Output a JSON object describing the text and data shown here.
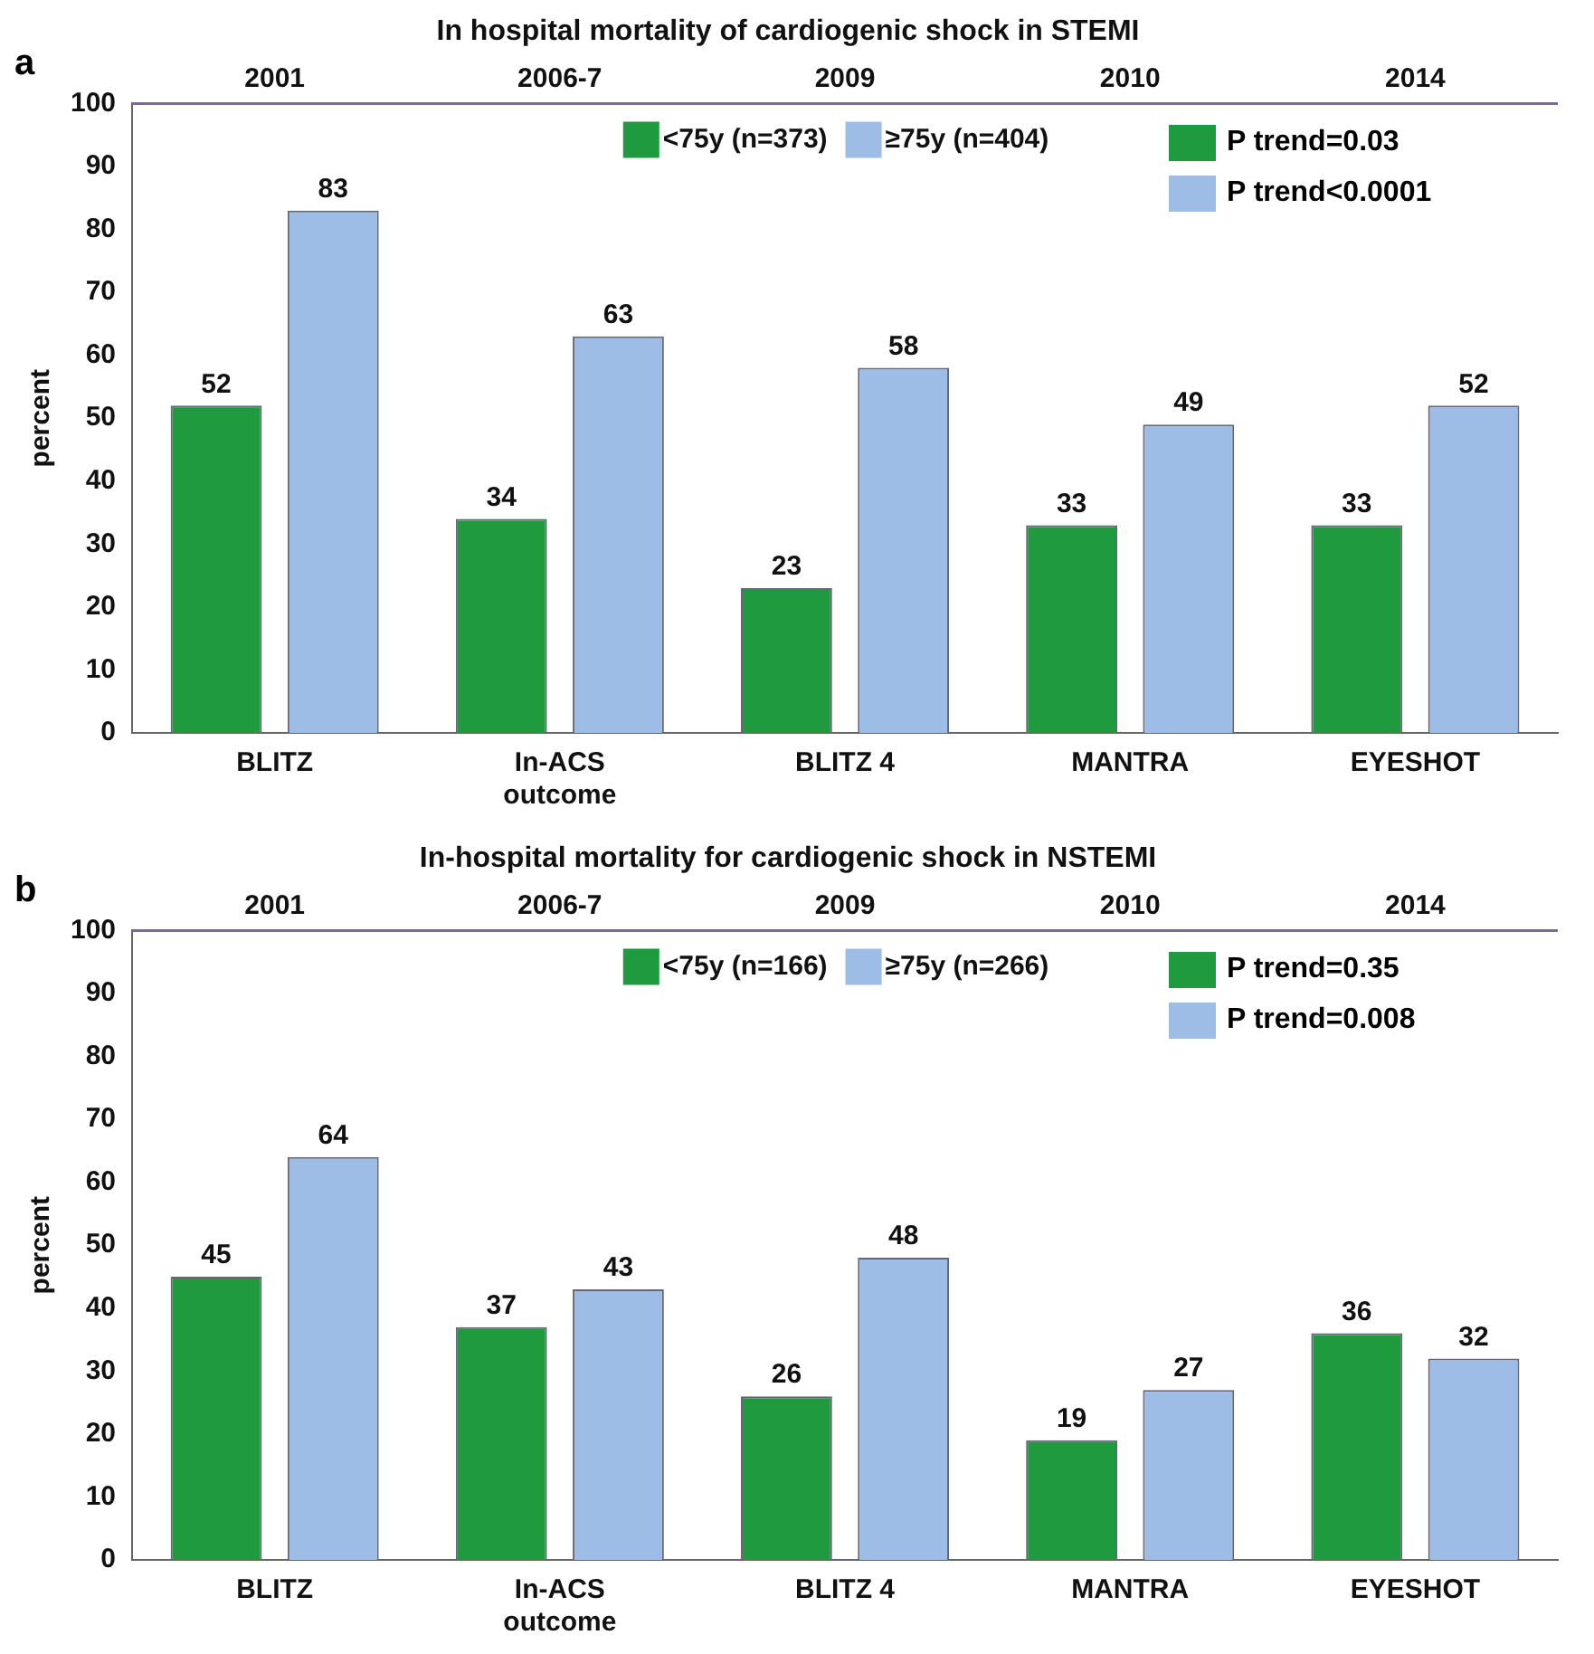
{
  "chart_data": [
    {
      "type": "bar",
      "title": "In hospital mortality of cardiogenic shock in STEMI",
      "ylabel": "percent",
      "categories": [
        "BLITZ",
        "In-ACS outcome",
        "BLITZ 4",
        "MANTRA",
        "EYESHOT"
      ],
      "series": [
        {
          "name": "<75y (n=373)",
          "color": "#1f9a3e",
          "values": [
            52,
            34,
            23,
            33,
            33
          ]
        },
        {
          "name": "≥75y (n=404)",
          "color": "#9dbce6",
          "values": [
            83,
            63,
            58,
            49,
            52
          ]
        }
      ],
      "ylim": [
        0,
        100
      ],
      "yticks": [
        0,
        10,
        20,
        30,
        40,
        50,
        60,
        70,
        80,
        90,
        100
      ],
      "grid": false,
      "legend": "top",
      "data_labels": true,
      "annotations": [
        "a",
        "P trend=0.03",
        "P trend<0.0001",
        "2001",
        "2006-7",
        "2009",
        "2010",
        "2014"
      ]
    },
    {
      "type": "bar",
      "title": "In-hospital mortality for cardiogenic shock in NSTEMI",
      "ylabel": "percent",
      "categories": [
        "BLITZ",
        "In-ACS outcome",
        "BLITZ 4",
        "MANTRA",
        "EYESHOT"
      ],
      "series": [
        {
          "name": "<75y (n=166)",
          "color": "#1f9a3e",
          "values": [
            45,
            37,
            26,
            19,
            36
          ]
        },
        {
          "name": "≥75y (n=266)",
          "color": "#9dbce6",
          "values": [
            64,
            43,
            48,
            27,
            32
          ]
        }
      ],
      "ylim": [
        0,
        100
      ],
      "yticks": [
        0,
        10,
        20,
        30,
        40,
        50,
        60,
        70,
        80,
        90,
        100
      ],
      "grid": false,
      "legend": "top",
      "data_labels": true,
      "annotations": [
        "b",
        "P trend=0.35",
        "P trend=0.008",
        "2001",
        "2006-7",
        "2009",
        "2010",
        "2014"
      ]
    }
  ]
}
